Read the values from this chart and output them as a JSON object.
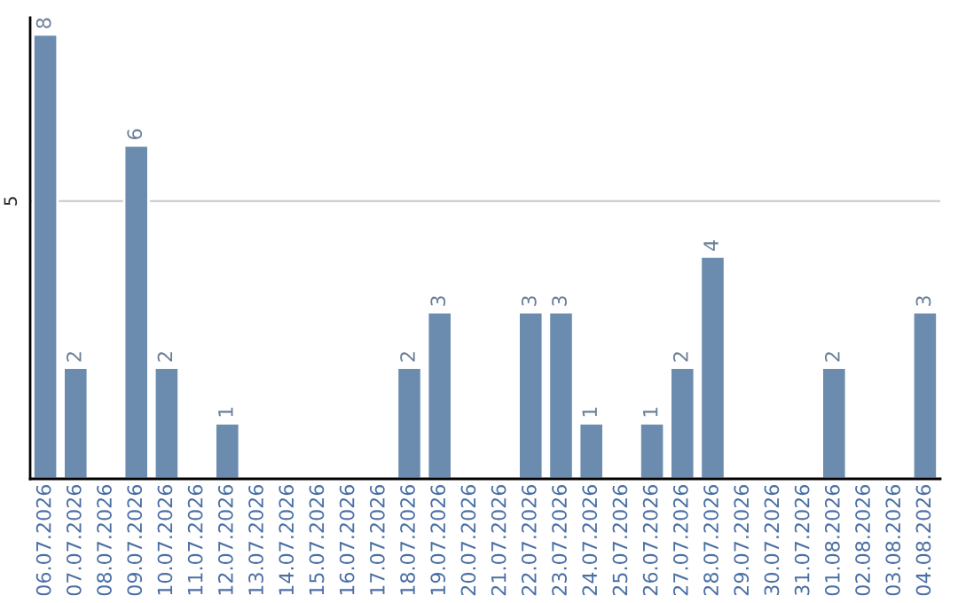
{
  "chart_data": {
    "type": "bar",
    "categories": [
      "06.07.2026",
      "07.07.2026",
      "08.07.2026",
      "09.07.2026",
      "10.07.2026",
      "11.07.2026",
      "12.07.2026",
      "13.07.2026",
      "14.07.2026",
      "15.07.2026",
      "16.07.2026",
      "17.07.2026",
      "18.07.2026",
      "19.07.2026",
      "20.07.2026",
      "21.07.2026",
      "22.07.2026",
      "23.07.2026",
      "24.07.2026",
      "25.07.2026",
      "26.07.2026",
      "27.07.2026",
      "28.07.2026",
      "29.07.2026",
      "30.07.2026",
      "31.07.2026",
      "01.08.2026",
      "02.08.2026",
      "03.08.2026",
      "04.08.2026"
    ],
    "values": [
      8,
      2,
      null,
      6,
      2,
      null,
      1,
      null,
      null,
      null,
      null,
      null,
      2,
      3,
      null,
      null,
      3,
      3,
      1,
      null,
      1,
      2,
      4,
      null,
      null,
      null,
      2,
      null,
      null,
      3
    ],
    "value_labels": [
      "8",
      "2",
      null,
      "6",
      "2",
      null,
      "1",
      null,
      null,
      null,
      null,
      null,
      "2",
      "3",
      null,
      null,
      "3",
      "3",
      "1",
      null,
      "1",
      "2",
      "4",
      null,
      null,
      null,
      "2",
      null,
      null,
      "3"
    ],
    "color": "#6b8cae",
    "ylim": [
      0,
      8.3
    ],
    "yticks": [
      5
    ],
    "grid": "y"
  }
}
